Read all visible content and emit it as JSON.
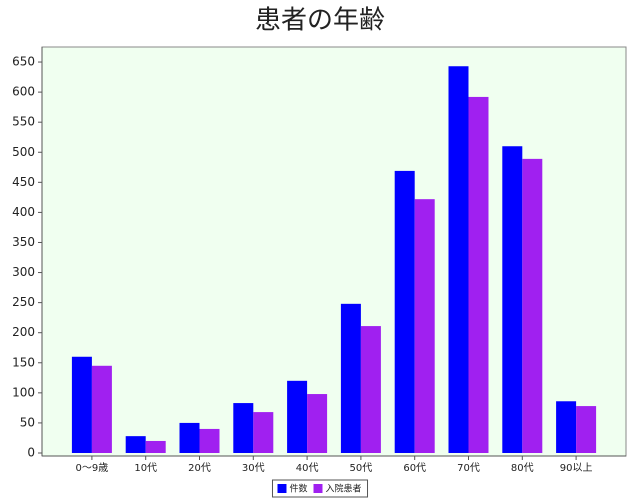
{
  "chart_data": {
    "type": "bar",
    "title": "患者の年齢",
    "categories": [
      "0〜9歳",
      "10代",
      "20代",
      "30代",
      "40代",
      "50代",
      "60代",
      "70代",
      "80代",
      "90以上"
    ],
    "series": [
      {
        "name": "件数",
        "color": "#0000ff",
        "values": [
          160,
          28,
          50,
          83,
          120,
          248,
          469,
          643,
          510,
          86
        ]
      },
      {
        "name": "入院患者",
        "color": "#a020f0",
        "values": [
          145,
          20,
          40,
          68,
          98,
          211,
          422,
          592,
          489,
          78
        ]
      }
    ],
    "ylim": [
      -5,
      675
    ],
    "yticks": [
      0,
      50,
      100,
      150,
      200,
      250,
      300,
      350,
      400,
      450,
      500,
      550,
      600,
      650
    ],
    "legend": "bottom",
    "background": "#f0fff0"
  }
}
